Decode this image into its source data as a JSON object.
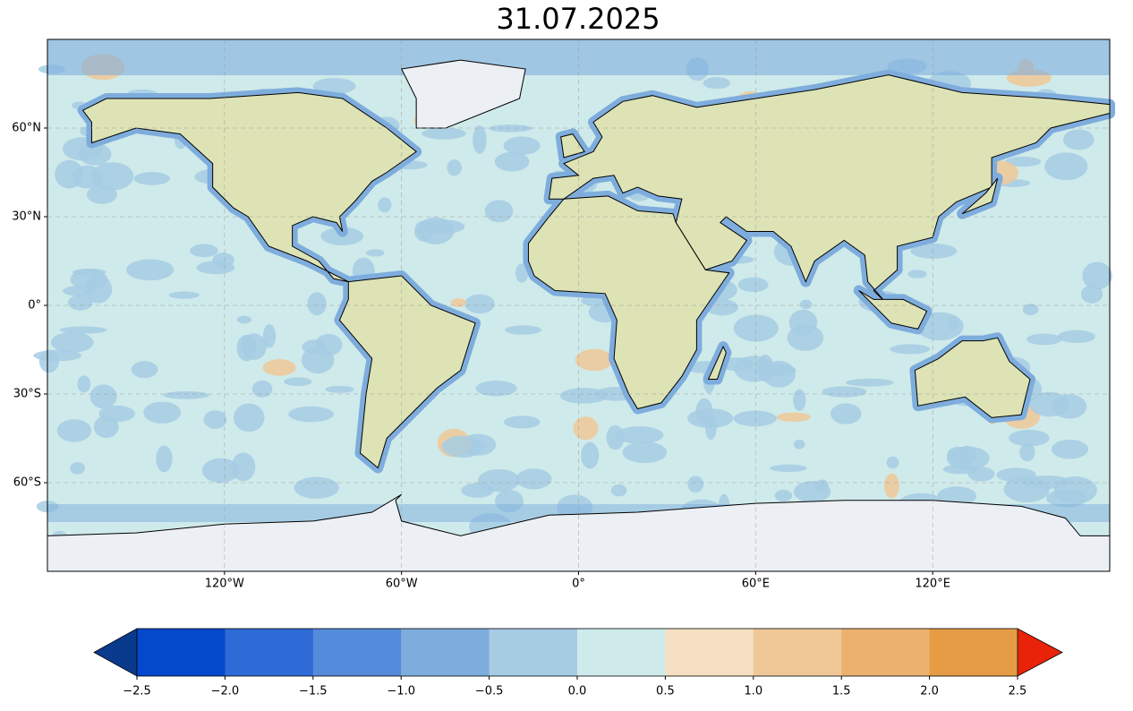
{
  "title": "31.07.2025",
  "map": {
    "xlim": [
      -180,
      180
    ],
    "ylim": [
      -90,
      90
    ],
    "xticks": [
      {
        "value": -120,
        "label": "120°W"
      },
      {
        "value": -60,
        "label": "60°W"
      },
      {
        "value": 0,
        "label": "0°"
      },
      {
        "value": 60,
        "label": "60°E"
      },
      {
        "value": 120,
        "label": "120°E"
      }
    ],
    "yticks": [
      {
        "value": 60,
        "label": "60°N"
      },
      {
        "value": 30,
        "label": "30°N"
      },
      {
        "value": 0,
        "label": "0°"
      },
      {
        "value": -30,
        "label": "30°S"
      },
      {
        "value": -60,
        "label": "60°S"
      }
    ],
    "grid": true
  },
  "colorbar": {
    "ticks": [
      {
        "value": -2.5,
        "label": "−2.5"
      },
      {
        "value": -2.0,
        "label": "−2.0"
      },
      {
        "value": -1.5,
        "label": "−1.5"
      },
      {
        "value": -1.0,
        "label": "−1.0"
      },
      {
        "value": -0.5,
        "label": "−0.5"
      },
      {
        "value": 0,
        "label": "0.0"
      },
      0.5,
      {
        "value": 1.0,
        "label": "1.0"
      },
      1.5,
      {
        "value": 2.0,
        "label": "2.0"
      },
      2.5
    ],
    "colors": [
      "#0448cc",
      "#2e6bd6",
      "#558bdb",
      "#7eaddd",
      "#a6cce4",
      "#cfeaea",
      "#f5e0c3",
      "#f0c898",
      "#ebb26e",
      "#e69c44"
    ],
    "under": "#0a3a8c",
    "over": "#e8230a"
  }
}
